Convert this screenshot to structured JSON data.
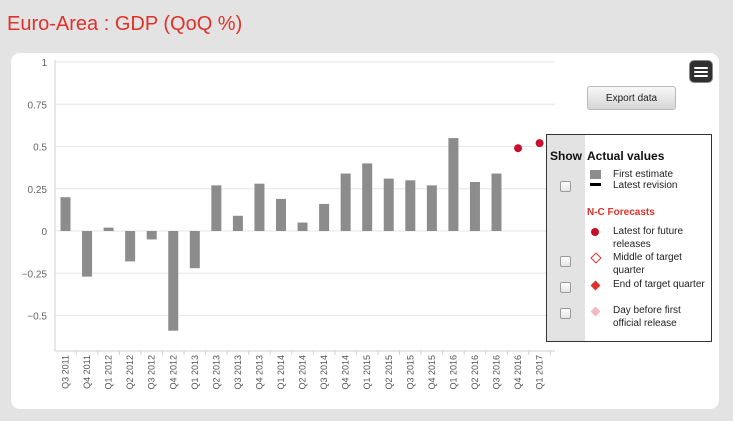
{
  "page": {
    "title": "Euro-Area : GDP (QoQ %)"
  },
  "toolbar": {
    "menu_icon": "hamburger-icon",
    "export_label": "Export data"
  },
  "legend": {
    "show_header": "Show",
    "actual_heading": "Actual values",
    "first_estimate": "First estimate",
    "latest_revision": "Latest revision",
    "forecasts_heading": "N-C Forecasts",
    "latest_future": "Latest for future releases",
    "middle_target": "Middle of target quarter",
    "end_target": "End of target quarter",
    "day_before": "Day before first official release"
  },
  "chart_data": {
    "type": "bar",
    "categories": [
      "Q3 2011",
      "Q4 2011",
      "Q1 2012",
      "Q2 2012",
      "Q3 2012",
      "Q4 2012",
      "Q1 2013",
      "Q2 2013",
      "Q3 2013",
      "Q4 2013",
      "Q1 2014",
      "Q2 2014",
      "Q3 2014",
      "Q4 2014",
      "Q1 2015",
      "Q2 2015",
      "Q3 2015",
      "Q4 2015",
      "Q1 2016",
      "Q2 2016",
      "Q3 2016",
      "Q4 2016",
      "Q1 2017"
    ],
    "series": [
      {
        "name": "First estimate",
        "color": "#8c8c8c",
        "values": [
          0.2,
          -0.27,
          0.02,
          -0.18,
          -0.05,
          -0.59,
          -0.22,
          0.27,
          0.09,
          0.28,
          0.19,
          0.05,
          0.16,
          0.34,
          0.4,
          0.31,
          0.3,
          0.27,
          0.55,
          0.29,
          0.34,
          null,
          null
        ]
      },
      {
        "name": "Latest for future releases",
        "color": "#c8102e",
        "values": [
          null,
          null,
          null,
          null,
          null,
          null,
          null,
          null,
          null,
          null,
          null,
          null,
          null,
          null,
          null,
          null,
          null,
          null,
          null,
          null,
          null,
          0.49,
          0.52
        ]
      }
    ],
    "yticks": [
      -0.5,
      -0.25,
      0,
      0.25,
      0.5,
      0.75,
      1
    ],
    "ytick_labels": [
      "−0.5",
      "−0.25",
      "0",
      "0.25",
      "0.5",
      "0.75",
      "1"
    ],
    "ylim": [
      -0.7,
      1
    ],
    "grid": true,
    "legend_position": "right"
  }
}
